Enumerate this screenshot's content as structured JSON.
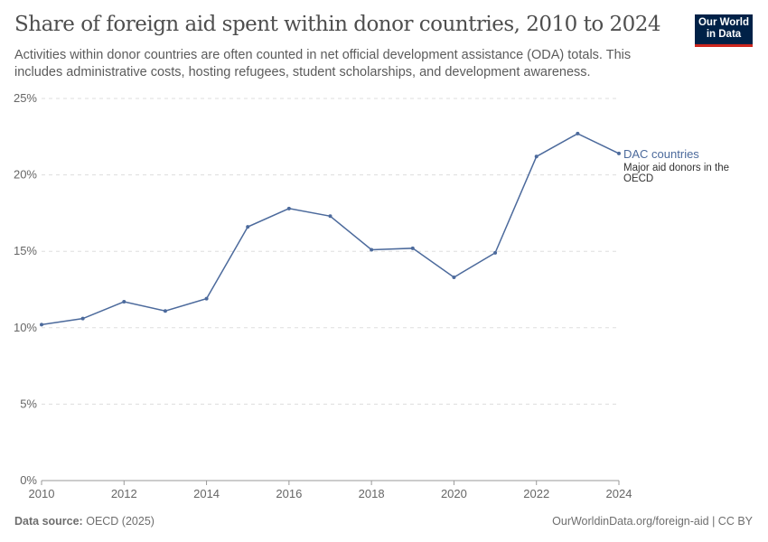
{
  "header": {
    "title": "Share of foreign aid spent within donor countries, 2010 to 2024",
    "subtitle": "Activities within donor countries are often counted in net official development assistance (ODA) totals. This includes administrative costs, hosting refugees, student scholarships, and development awareness.",
    "logo": "Our World in Data"
  },
  "footer": {
    "source_label": "Data source:",
    "source": "OECD (2025)",
    "link": "OurWorldinData.org/foreign-aid | CC BY"
  },
  "colors": {
    "series": "#4c6a9c",
    "logo_bg": "#002147",
    "logo_accent": "#ce261e"
  },
  "chart_data": {
    "type": "line",
    "x": [
      2010,
      2011,
      2012,
      2013,
      2014,
      2015,
      2016,
      2017,
      2018,
      2019,
      2020,
      2021,
      2022,
      2023,
      2024
    ],
    "series": [
      {
        "name": "DAC countries",
        "description": "Major aid donors in the OECD",
        "values": [
          10.2,
          10.6,
          11.7,
          11.1,
          11.9,
          16.6,
          17.8,
          17.3,
          15.1,
          15.2,
          13.3,
          14.9,
          21.2,
          22.7,
          21.4
        ]
      }
    ],
    "ylim": [
      0,
      25
    ],
    "yticks": [
      "0%",
      "5%",
      "10%",
      "15%",
      "20%",
      "25%"
    ],
    "xticks": [
      "2010",
      "2012",
      "2014",
      "2016",
      "2018",
      "2020",
      "2022",
      "2024"
    ],
    "grid": "horizontal dashed",
    "legend": "right, inline label"
  }
}
